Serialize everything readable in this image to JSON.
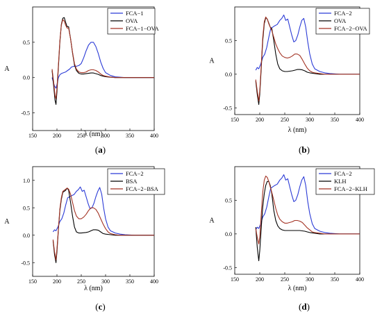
{
  "chart_data": [
    {
      "type": "line",
      "panel_label": "a",
      "xlabel": "λ (nm)",
      "ylabel": "A",
      "xlim": [
        150,
        400
      ],
      "ylim": [
        -0.75,
        1.0
      ],
      "xticks": [
        150,
        200,
        250,
        300,
        350,
        400
      ],
      "yticks": [
        -0.5,
        0.0,
        0.5
      ],
      "legend": "top-right",
      "series": [
        {
          "name": "FCA−1",
          "color": "#2a3ad6",
          "x": [
            190,
            192,
            195,
            198,
            200,
            203,
            206,
            210,
            214,
            218,
            222,
            226,
            230,
            235,
            240,
            245,
            250,
            255,
            260,
            265,
            270,
            275,
            280,
            285,
            290,
            295,
            300,
            310,
            320,
            330,
            340,
            350,
            360,
            370,
            380,
            390,
            400
          ],
          "y": [
            0.0,
            -0.05,
            -0.12,
            -0.15,
            -0.1,
            0.0,
            0.04,
            0.06,
            0.07,
            0.08,
            0.1,
            0.12,
            0.15,
            0.16,
            0.16,
            0.17,
            0.2,
            0.28,
            0.38,
            0.46,
            0.5,
            0.5,
            0.44,
            0.34,
            0.22,
            0.13,
            0.07,
            0.03,
            0.01,
            0.005,
            0.0,
            0.0,
            0.0,
            0.0,
            0.0,
            0.0,
            0.0
          ]
        },
        {
          "name": "OVA",
          "color": "#000000",
          "x": [
            190,
            193,
            196,
            198,
            200,
            203,
            206,
            209,
            212,
            215,
            218,
            221,
            224,
            228,
            232,
            236,
            240,
            245,
            250,
            255,
            260,
            265,
            270,
            275,
            280,
            285,
            290,
            295,
            300,
            310,
            320,
            330,
            350,
            400
          ],
          "y": [
            0.1,
            -0.1,
            -0.32,
            -0.38,
            -0.2,
            0.15,
            0.5,
            0.75,
            0.84,
            0.85,
            0.78,
            0.72,
            0.72,
            0.55,
            0.35,
            0.18,
            0.1,
            0.06,
            0.05,
            0.05,
            0.055,
            0.06,
            0.065,
            0.065,
            0.055,
            0.045,
            0.03,
            0.02,
            0.012,
            0.005,
            0.0,
            0.0,
            0.0,
            0.0
          ]
        },
        {
          "name": "FCA−1−OVA",
          "color": "#a33324",
          "x": [
            190,
            193,
            196,
            198,
            200,
            203,
            206,
            209,
            212,
            215,
            218,
            221,
            224,
            228,
            232,
            236,
            240,
            245,
            250,
            255,
            260,
            265,
            270,
            275,
            280,
            285,
            290,
            295,
            300,
            310,
            320,
            330,
            350,
            400
          ],
          "y": [
            0.12,
            -0.05,
            -0.25,
            -0.3,
            -0.15,
            0.18,
            0.52,
            0.74,
            0.82,
            0.8,
            0.74,
            0.7,
            0.7,
            0.55,
            0.36,
            0.2,
            0.12,
            0.08,
            0.07,
            0.07,
            0.08,
            0.1,
            0.11,
            0.11,
            0.1,
            0.08,
            0.05,
            0.03,
            0.02,
            0.008,
            0.0,
            0.0,
            0.0,
            0.0
          ]
        }
      ]
    },
    {
      "type": "line",
      "panel_label": "b",
      "xlabel": "λ (nm)",
      "ylabel": "A",
      "xlim": [
        150,
        400
      ],
      "ylim": [
        -0.6,
        1.0
      ],
      "xticks": [
        150,
        200,
        250,
        300,
        350,
        400
      ],
      "yticks": [
        -0.5,
        0.0,
        0.5
      ],
      "legend": "top-right",
      "series": [
        {
          "name": "FCA−2",
          "color": "#2a3ad6",
          "x": [
            192,
            195,
            198,
            202,
            206,
            210,
            214,
            218,
            222,
            226,
            230,
            235,
            240,
            244,
            248,
            252,
            256,
            260,
            264,
            268,
            272,
            276,
            280,
            284,
            288,
            292,
            296,
            300,
            305,
            310,
            320,
            330,
            340,
            350,
            360,
            380,
            400
          ],
          "y": [
            0.06,
            0.1,
            0.08,
            0.15,
            0.25,
            0.3,
            0.4,
            0.55,
            0.68,
            0.7,
            0.72,
            0.74,
            0.8,
            0.83,
            0.88,
            0.8,
            0.82,
            0.7,
            0.58,
            0.48,
            0.5,
            0.58,
            0.7,
            0.8,
            0.83,
            0.7,
            0.48,
            0.3,
            0.15,
            0.08,
            0.04,
            0.02,
            0.01,
            0.005,
            0.0,
            0.0,
            0.0
          ]
        },
        {
          "name": "OVA",
          "color": "#000000",
          "x": [
            192,
            195,
            198,
            200,
            203,
            206,
            209,
            212,
            215,
            218,
            221,
            224,
            228,
            232,
            236,
            240,
            245,
            250,
            255,
            260,
            265,
            270,
            275,
            280,
            285,
            290,
            295,
            300,
            310,
            320,
            330,
            350,
            400
          ],
          "y": [
            -0.1,
            -0.3,
            -0.45,
            -0.3,
            0.1,
            0.5,
            0.75,
            0.84,
            0.82,
            0.76,
            0.7,
            0.68,
            0.5,
            0.3,
            0.15,
            0.08,
            0.05,
            0.04,
            0.04,
            0.045,
            0.05,
            0.06,
            0.07,
            0.07,
            0.065,
            0.05,
            0.03,
            0.02,
            0.01,
            0.0,
            0.0,
            0.0,
            0.0
          ]
        },
        {
          "name": "FCA−2−OVA",
          "color": "#a33324",
          "x": [
            192,
            195,
            198,
            200,
            203,
            206,
            209,
            212,
            215,
            218,
            221,
            224,
            228,
            232,
            236,
            240,
            245,
            250,
            255,
            260,
            265,
            270,
            275,
            280,
            285,
            290,
            295,
            300,
            305,
            310,
            320,
            330,
            350,
            400
          ],
          "y": [
            -0.08,
            -0.25,
            -0.4,
            -0.25,
            0.15,
            0.55,
            0.78,
            0.85,
            0.82,
            0.75,
            0.7,
            0.65,
            0.55,
            0.45,
            0.38,
            0.32,
            0.27,
            0.25,
            0.24,
            0.25,
            0.27,
            0.3,
            0.3,
            0.28,
            0.22,
            0.15,
            0.09,
            0.05,
            0.03,
            0.02,
            0.01,
            0.0,
            0.0,
            0.0
          ]
        }
      ]
    },
    {
      "type": "line",
      "panel_label": "c",
      "xlabel": "λ (nm)",
      "ylabel": "A",
      "xlim": [
        150,
        400
      ],
      "ylim": [
        -0.75,
        1.25
      ],
      "xticks": [
        150,
        200,
        250,
        300,
        350,
        400
      ],
      "yticks": [
        -0.5,
        0.0,
        0.5,
        1.0
      ],
      "legend": "top-right",
      "series": [
        {
          "name": "FCA−2",
          "color": "#2a3ad6",
          "x": [
            192,
            195,
            198,
            202,
            206,
            210,
            214,
            218,
            222,
            226,
            230,
            235,
            240,
            244,
            248,
            252,
            256,
            260,
            264,
            268,
            272,
            276,
            280,
            284,
            288,
            292,
            296,
            300,
            305,
            310,
            320,
            330,
            340,
            350,
            360,
            380,
            400
          ],
          "y": [
            0.06,
            0.1,
            0.08,
            0.15,
            0.25,
            0.3,
            0.4,
            0.55,
            0.68,
            0.7,
            0.72,
            0.74,
            0.8,
            0.83,
            0.88,
            0.8,
            0.82,
            0.7,
            0.58,
            0.48,
            0.5,
            0.58,
            0.7,
            0.8,
            0.87,
            0.75,
            0.5,
            0.3,
            0.15,
            0.08,
            0.04,
            0.02,
            0.01,
            0.005,
            0.0,
            0.0,
            0.0
          ]
        },
        {
          "name": "BSA",
          "color": "#000000",
          "x": [
            192,
            195,
            198,
            200,
            203,
            206,
            209,
            212,
            215,
            218,
            221,
            224,
            228,
            232,
            236,
            240,
            245,
            250,
            255,
            260,
            265,
            270,
            275,
            280,
            285,
            290,
            295,
            300,
            310,
            320,
            330,
            350,
            400
          ],
          "y": [
            -0.1,
            -0.35,
            -0.5,
            -0.3,
            0.1,
            0.45,
            0.65,
            0.78,
            0.8,
            0.82,
            0.86,
            0.82,
            0.6,
            0.35,
            0.15,
            0.06,
            0.04,
            0.04,
            0.045,
            0.05,
            0.06,
            0.08,
            0.1,
            0.1,
            0.09,
            0.06,
            0.03,
            0.02,
            0.01,
            0.0,
            0.0,
            0.0,
            0.0
          ]
        },
        {
          "name": "FCA−2−BSA",
          "color": "#a33324",
          "x": [
            192,
            195,
            198,
            200,
            203,
            206,
            209,
            212,
            215,
            218,
            221,
            224,
            228,
            232,
            236,
            240,
            245,
            250,
            255,
            260,
            265,
            270,
            275,
            280,
            285,
            290,
            295,
            300,
            305,
            310,
            320,
            330,
            350,
            400
          ],
          "y": [
            -0.08,
            -0.3,
            -0.45,
            -0.25,
            0.12,
            0.48,
            0.68,
            0.8,
            0.82,
            0.84,
            0.86,
            0.84,
            0.75,
            0.6,
            0.45,
            0.35,
            0.3,
            0.3,
            0.33,
            0.38,
            0.45,
            0.5,
            0.5,
            0.47,
            0.4,
            0.3,
            0.2,
            0.12,
            0.06,
            0.03,
            0.01,
            0.0,
            0.0,
            0.0
          ]
        }
      ]
    },
    {
      "type": "line",
      "panel_label": "d",
      "xlabel": "λ (nm)",
      "ylabel": "A",
      "xlim": [
        150,
        400
      ],
      "ylim": [
        -0.6,
        1.0
      ],
      "xticks": [
        150,
        200,
        250,
        300,
        350,
        400
      ],
      "yticks": [
        -0.5,
        0.0,
        0.5
      ],
      "legend": "top-right",
      "series": [
        {
          "name": "FCA−2",
          "color": "#2a3ad6",
          "x": [
            192,
            195,
            198,
            202,
            206,
            210,
            214,
            218,
            222,
            226,
            230,
            235,
            240,
            244,
            248,
            252,
            256,
            260,
            264,
            268,
            272,
            276,
            280,
            284,
            288,
            292,
            296,
            300,
            305,
            310,
            320,
            330,
            340,
            350,
            360,
            380,
            400
          ],
          "y": [
            0.06,
            0.1,
            0.08,
            0.15,
            0.25,
            0.3,
            0.4,
            0.55,
            0.68,
            0.7,
            0.72,
            0.74,
            0.8,
            0.83,
            0.88,
            0.8,
            0.82,
            0.7,
            0.58,
            0.48,
            0.5,
            0.58,
            0.7,
            0.8,
            0.85,
            0.72,
            0.48,
            0.3,
            0.15,
            0.08,
            0.04,
            0.02,
            0.01,
            0.005,
            0.0,
            0.0,
            0.0
          ]
        },
        {
          "name": "KLH",
          "color": "#000000",
          "x": [
            192,
            195,
            198,
            200,
            203,
            206,
            209,
            212,
            215,
            218,
            221,
            224,
            228,
            232,
            236,
            240,
            245,
            250,
            255,
            260,
            265,
            270,
            275,
            280,
            285,
            290,
            295,
            300,
            310,
            320,
            330,
            350,
            400
          ],
          "y": [
            0.1,
            -0.2,
            -0.4,
            -0.25,
            0.1,
            0.4,
            0.6,
            0.72,
            0.78,
            0.78,
            0.72,
            0.6,
            0.35,
            0.2,
            0.12,
            0.08,
            0.06,
            0.05,
            0.05,
            0.05,
            0.05,
            0.05,
            0.05,
            0.05,
            0.045,
            0.04,
            0.03,
            0.02,
            0.01,
            0.0,
            0.0,
            0.0,
            0.0
          ]
        },
        {
          "name": "FCA−2−KLH",
          "color": "#a33324",
          "x": [
            192,
            195,
            198,
            200,
            203,
            206,
            209,
            212,
            215,
            218,
            221,
            224,
            228,
            232,
            236,
            240,
            245,
            250,
            255,
            260,
            265,
            270,
            275,
            280,
            285,
            290,
            295,
            300,
            305,
            310,
            320,
            330,
            350,
            400
          ],
          "y": [
            0.08,
            -0.05,
            -0.15,
            -0.05,
            0.3,
            0.62,
            0.8,
            0.86,
            0.84,
            0.78,
            0.7,
            0.62,
            0.5,
            0.38,
            0.28,
            0.22,
            0.18,
            0.16,
            0.16,
            0.17,
            0.18,
            0.2,
            0.2,
            0.19,
            0.17,
            0.13,
            0.09,
            0.06,
            0.03,
            0.02,
            0.01,
            0.0,
            0.0,
            0.0
          ]
        }
      ]
    }
  ]
}
